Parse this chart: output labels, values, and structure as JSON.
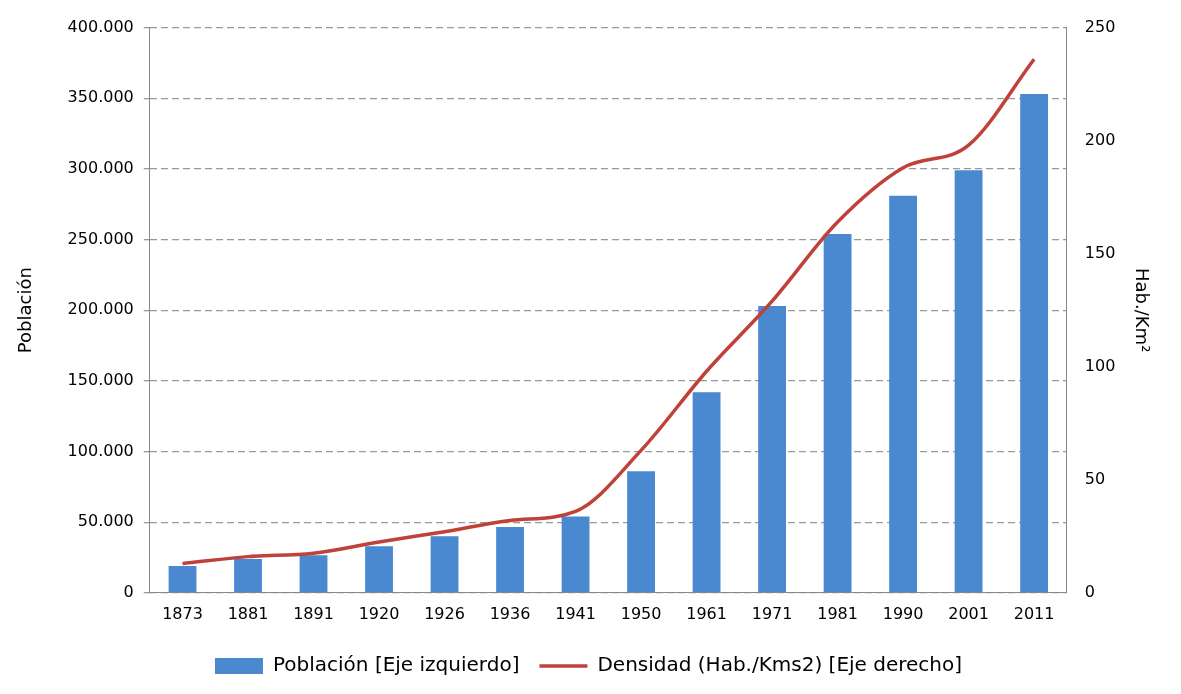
{
  "chart_data": {
    "type": "bar",
    "ylabel": "Población",
    "y2label": "Hab./Km²",
    "categories": [
      "1873",
      "1881",
      "1891",
      "1920",
      "1926",
      "1936",
      "1941",
      "1950",
      "1961",
      "1971",
      "1981",
      "1990",
      "2001",
      "2011"
    ],
    "series": [
      {
        "name": "Población [Eje izquierdo]",
        "color": "#4a89d0",
        "values": [
          19000,
          24000,
          26500,
          33000,
          40000,
          46500,
          54000,
          86000,
          142000,
          203000,
          254000,
          281000,
          299000,
          353000
        ]
      },
      {
        "name": "Densidad (Hab./Kms2) [Eje derecho]",
        "type": "line",
        "axis": "y2",
        "color": "#c0403a",
        "marker": "none",
        "values": [
          13,
          16,
          17.5,
          22.5,
          27,
          32,
          36,
          63,
          98,
          129,
          164,
          188,
          198,
          236
        ]
      }
    ],
    "ylim": [
      0,
      400000
    ],
    "yticks": [
      {
        "value": 0,
        "label": "0"
      },
      {
        "value": 50000,
        "label": "50.000"
      },
      {
        "value": 100000,
        "label": "100.000"
      },
      {
        "value": 150000,
        "label": "150.000"
      },
      {
        "value": 200000,
        "label": "200.000"
      },
      {
        "value": 250000,
        "label": "250.000"
      },
      {
        "value": 300000,
        "label": "300.000"
      },
      {
        "value": 350000,
        "label": "350.000"
      },
      {
        "value": 400000,
        "label": "400.000"
      }
    ],
    "y2lim": [
      0,
      250
    ],
    "y2ticks": [
      0,
      50,
      100,
      150,
      200,
      250
    ],
    "grid": "y",
    "legend": "bottom"
  }
}
